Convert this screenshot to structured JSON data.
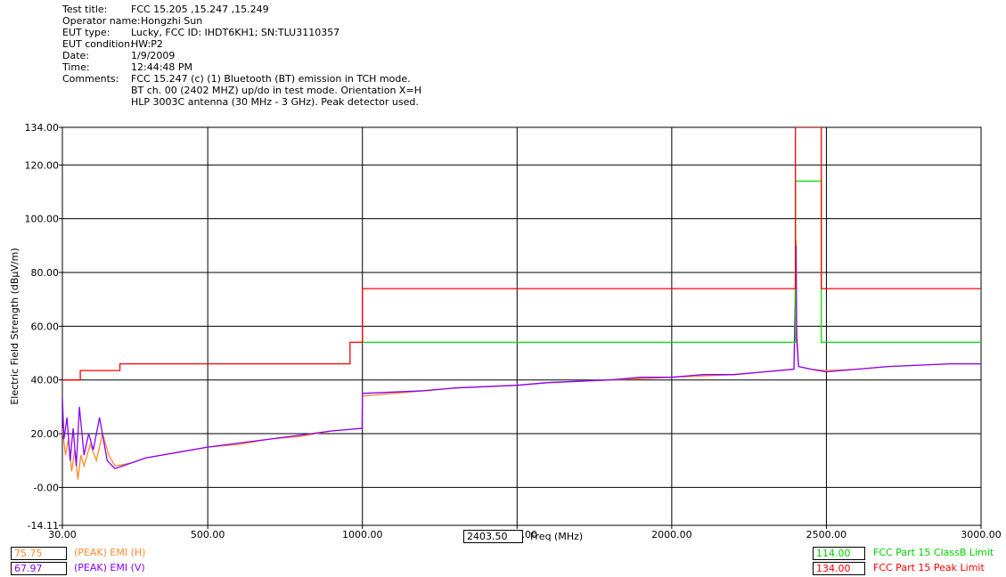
{
  "header": {
    "rows": [
      {
        "label": "Test title:",
        "value": "FCC 15.205 ,15.247 ,15.249"
      },
      {
        "label": "Operator name:",
        "value": "Hongzhi Sun"
      },
      {
        "label": "EUT type:",
        "value": "Lucky, FCC ID: IHDT6KH1; SN:TLU3110357"
      },
      {
        "label": "EUT condition:",
        "value": "HW:P2"
      },
      {
        "label": "Date:",
        "value": "1/9/2009"
      },
      {
        "label": "Time:",
        "value": "12:44:48 PM"
      },
      {
        "label": "Comments:",
        "value": "FCC 15.247 (c) (1) Bluetooth (BT) emission in TCH mode."
      }
    ],
    "comment_lines": [
      "BT ch. 00 (2402 MHZ) up/do in test mode. Orientation X=H",
      "HLP 3003C antenna (30 MHz - 3 GHz). Peak detector used."
    ]
  },
  "freq_readout": {
    "value": "2403.50",
    "label": "Freq (MHz)"
  },
  "legend_left": [
    {
      "value": "75.75",
      "label": "(PEAK) EMI (H)",
      "color": "#ff8a2a"
    },
    {
      "value": "67.97",
      "label": "(PEAK) EMI (V)",
      "color": "#8a00ff"
    }
  ],
  "legend_right": [
    {
      "value": "114.00",
      "label": "FCC Part 15 ClassB Limit",
      "color": "#00e000"
    },
    {
      "value": "134.00",
      "label": "FCC Part 15 Peak Limit",
      "color": "#ff0000"
    }
  ],
  "chart_data": {
    "type": "line",
    "xlabel": "Freq (MHz)",
    "ylabel": "Electric Field Strength (dBµV/m)",
    "xlim": [
      30,
      3000
    ],
    "ylim": [
      -14.11,
      134.0
    ],
    "xticks": [
      {
        "value": 30,
        "label": "30.00"
      },
      {
        "value": 500,
        "label": "500.00"
      },
      {
        "value": 1000,
        "label": "1000.00"
      },
      {
        "value": 1500,
        "label": "1500.00"
      },
      {
        "value": 2000,
        "label": "2000.00"
      },
      {
        "value": 2500,
        "label": "2500.00"
      },
      {
        "value": 3000,
        "label": "3000.00"
      }
    ],
    "yticks": [
      {
        "value": 134.0,
        "label": "134.00"
      },
      {
        "value": 120.0,
        "label": "120.00"
      },
      {
        "value": 100.0,
        "label": "100.00"
      },
      {
        "value": 80.0,
        "label": "80.00"
      },
      {
        "value": 60.0,
        "label": "60.00"
      },
      {
        "value": 40.0,
        "label": "40.00"
      },
      {
        "value": 20.0,
        "label": "20.00"
      },
      {
        "value": 0.0,
        "label": "-0.00"
      },
      {
        "value": -14.11,
        "label": "-14.11"
      }
    ],
    "grid": true,
    "grid_x": [
      500,
      1000,
      1500,
      2000,
      2500,
      3000
    ],
    "grid_y": [
      120,
      100,
      80,
      60,
      40,
      20,
      0
    ],
    "series": [
      {
        "name": "FCC Part 15 Peak Limit",
        "color": "#ff0000",
        "x": [
          30,
          88,
          88,
          216,
          216,
          960,
          960,
          1000,
          1000,
          2400,
          2400,
          2483.5,
          2483.5,
          3000
        ],
        "y": [
          40,
          40,
          43.5,
          43.5,
          46,
          46,
          54,
          54,
          74,
          74,
          134,
          134,
          74,
          74
        ]
      },
      {
        "name": "FCC Part 15 ClassB Limit",
        "color": "#00e000",
        "x": [
          1000,
          2400,
          2400,
          2483.5,
          2483.5,
          3000
        ],
        "y": [
          54,
          54,
          114,
          114,
          54,
          54
        ]
      },
      {
        "name": "(PEAK) EMI (H)",
        "color": "#ff8a2a",
        "x": [
          30,
          40,
          50,
          60,
          70,
          80,
          90,
          100,
          120,
          140,
          160,
          180,
          200,
          250,
          300,
          400,
          500,
          600,
          700,
          800,
          900,
          999,
          1000,
          1100,
          1200,
          1300,
          1400,
          1500,
          1600,
          1700,
          1800,
          1900,
          2000,
          2100,
          2200,
          2300,
          2395,
          2400,
          2402,
          2404,
          2410,
          2450,
          2500,
          2600,
          2700,
          2800,
          2900,
          3000
        ],
        "y": [
          22,
          12,
          18,
          6,
          14,
          3,
          12,
          8,
          16,
          10,
          20,
          12,
          8,
          9,
          11,
          13,
          15,
          16,
          18,
          19,
          21,
          22,
          34,
          35,
          36,
          37,
          37.5,
          38,
          39,
          39.5,
          40,
          40.5,
          41,
          41.5,
          42,
          43,
          44,
          80,
          92,
          60,
          45,
          44,
          43.5,
          44,
          45,
          45.5,
          46,
          46
        ]
      },
      {
        "name": "(PEAK) EMI (V)",
        "color": "#8a00ff",
        "x": [
          30,
          35,
          45,
          55,
          65,
          75,
          85,
          100,
          115,
          130,
          150,
          175,
          200,
          250,
          300,
          400,
          500,
          600,
          700,
          800,
          900,
          999,
          1000,
          1100,
          1200,
          1300,
          1400,
          1500,
          1600,
          1700,
          1800,
          1900,
          2000,
          2100,
          2200,
          2300,
          2395,
          2400,
          2402,
          2404,
          2410,
          2450,
          2500,
          2600,
          2700,
          2800,
          2900,
          3000
        ],
        "y": [
          34,
          18,
          26,
          10,
          22,
          8,
          30,
          12,
          20,
          14,
          26,
          10,
          7,
          9,
          11,
          13,
          15,
          16.5,
          18,
          19.5,
          21,
          22,
          35,
          35.5,
          36,
          37,
          37.5,
          38,
          39,
          39.5,
          40,
          41,
          41,
          42,
          42,
          43,
          44,
          70,
          90,
          55,
          45,
          44,
          43,
          44,
          45,
          45.5,
          46,
          46
        ]
      }
    ]
  }
}
